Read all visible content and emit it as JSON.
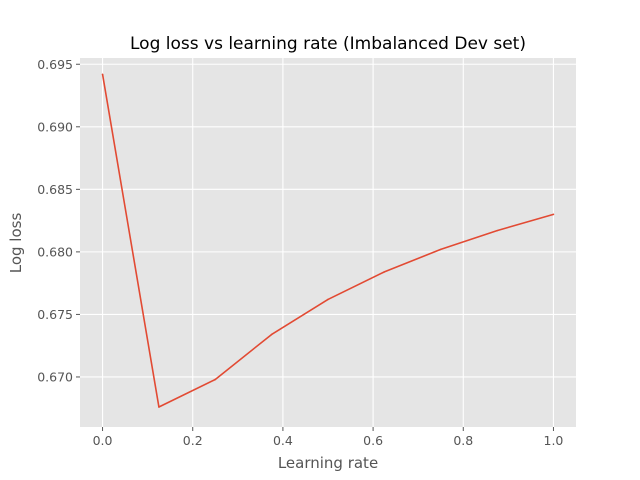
{
  "chart_data": {
    "type": "line",
    "title": "Log loss vs learning rate (Imbalanced Dev set)",
    "xlabel": "Learning rate",
    "ylabel": "Log loss",
    "xlim": [
      -0.05,
      1.05
    ],
    "ylim": [
      0.666,
      0.6955
    ],
    "xticks": [
      0.0,
      0.2,
      0.4,
      0.6,
      0.8,
      1.0
    ],
    "xtick_labels": [
      "0.0",
      "0.2",
      "0.4",
      "0.6",
      "0.8",
      "1.0"
    ],
    "yticks": [
      0.67,
      0.675,
      0.68,
      0.685,
      0.69,
      0.695
    ],
    "ytick_labels": [
      "0.670",
      "0.675",
      "0.680",
      "0.685",
      "0.690",
      "0.695"
    ],
    "grid": true,
    "background": "#e5e5e5",
    "series": [
      {
        "color": "#e24a33",
        "x": [
          0.0,
          0.125,
          0.25,
          0.375,
          0.5,
          0.625,
          0.75,
          0.875,
          1.0
        ],
        "y": [
          0.6942,
          0.6676,
          0.6698,
          0.6734,
          0.6762,
          0.6784,
          0.6802,
          0.6817,
          0.683
        ]
      }
    ]
  }
}
